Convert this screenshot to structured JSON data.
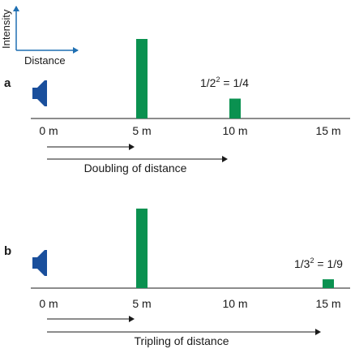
{
  "colors": {
    "accent_blue": "#1f6fb2",
    "bar_green": "#0a9150",
    "speaker_blue": "#1a4f9c",
    "text": "#1a1a1a"
  },
  "icons": [
    "speaker-icon"
  ],
  "legend": {
    "y_label": "Intensity",
    "x_label": "Distance"
  },
  "panels": [
    {
      "letter": "a",
      "ticks": [
        "0 m",
        "5 m",
        "10 m",
        "15 m"
      ],
      "formula": {
        "base": "1/2",
        "exp": "2",
        "result": " = 1/4"
      },
      "caption": "Doubling of distance",
      "bars": [
        {
          "distance_m": 5,
          "relative_intensity": 1
        },
        {
          "distance_m": 10,
          "relative_intensity": 0.25
        }
      ],
      "arrows_reach_m": [
        5,
        10
      ]
    },
    {
      "letter": "b",
      "ticks": [
        "0 m",
        "5 m",
        "10 m",
        "15 m"
      ],
      "formula": {
        "base": "1/3",
        "exp": "2",
        "result": " = 1/9"
      },
      "caption": "Tripling of distance",
      "bars": [
        {
          "distance_m": 5,
          "relative_intensity": 1
        },
        {
          "distance_m": 15,
          "relative_intensity": 0.1111
        }
      ],
      "arrows_reach_m": [
        5,
        15
      ]
    }
  ]
}
